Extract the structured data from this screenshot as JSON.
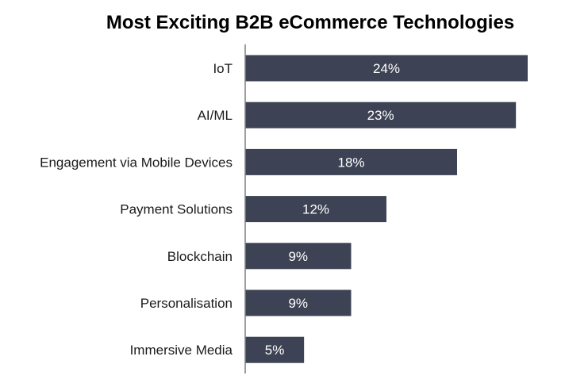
{
  "chart_data": {
    "type": "bar",
    "orientation": "horizontal",
    "title": "Most Exciting B2B eCommerce Technologies",
    "categories": [
      "IoT",
      "AI/ML",
      "Engagement via Mobile Devices",
      "Payment Solutions",
      "Blockchain",
      "Personalisation",
      "Immersive Media"
    ],
    "values": [
      24,
      23,
      18,
      12,
      9,
      9,
      5
    ],
    "value_labels": [
      "24%",
      "23%",
      "18%",
      "12%",
      "9%",
      "9%",
      "5%"
    ],
    "unit": "%",
    "xlim": [
      0,
      24
    ],
    "grid": false,
    "legend": "none",
    "bar_color": "#3d4354",
    "axis_color": "#7f7f7f",
    "label_color": "#ffffff"
  }
}
